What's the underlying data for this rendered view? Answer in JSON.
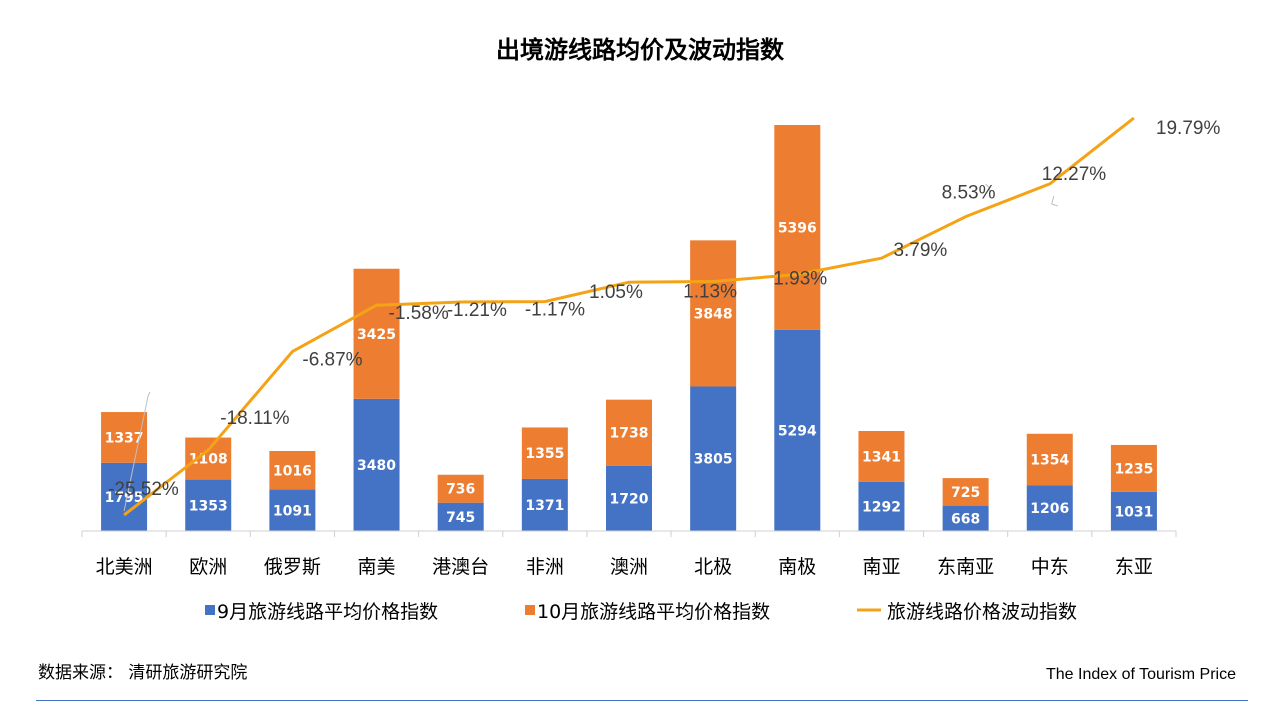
{
  "chart_data": {
    "type": "bar",
    "stacked": true,
    "title": "出境游线路均价及波动指数",
    "categories": [
      "北美洲",
      "欧洲",
      "俄罗斯",
      "南美",
      "港澳台",
      "非洲",
      "澳洲",
      "北极",
      "南极",
      "南亚",
      "东南亚",
      "中东",
      "东亚"
    ],
    "series": [
      {
        "name": "9月旅游线路平均价格指数",
        "type": "bar",
        "color": "#4472c4",
        "values": [
          1795,
          1353,
          1091,
          3480,
          745,
          1371,
          1720,
          3805,
          5294,
          1292,
          668,
          1206,
          1031
        ]
      },
      {
        "name": "10月旅游线路平均价格指数",
        "type": "bar",
        "color": "#ed7d31",
        "values": [
          1337,
          1108,
          1016,
          3425,
          736,
          1355,
          1738,
          3848,
          5396,
          1341,
          725,
          1354,
          1235
        ]
      },
      {
        "name": "旅游线路价格波动指数",
        "type": "line",
        "color": "#f5a316",
        "values": [
          -25.52,
          -18.11,
          -6.87,
          -1.58,
          -1.21,
          -1.17,
          1.05,
          1.13,
          1.93,
          3.79,
          8.53,
          12.27,
          19.79
        ],
        "labels": [
          "-25.52%",
          "-18.11%",
          "-6.87%",
          "-1.58%",
          "-1.21%",
          "-1.17%",
          "1.05%",
          "1.13%",
          "1.93%",
          "3.79%",
          "8.53%",
          "12.27%",
          "19.79%"
        ]
      }
    ],
    "legend_position": "bottom",
    "grid": false
  },
  "source_note": "数据来源：  清研旅游研究院",
  "footer_brand": "The Index of Tourism Price"
}
